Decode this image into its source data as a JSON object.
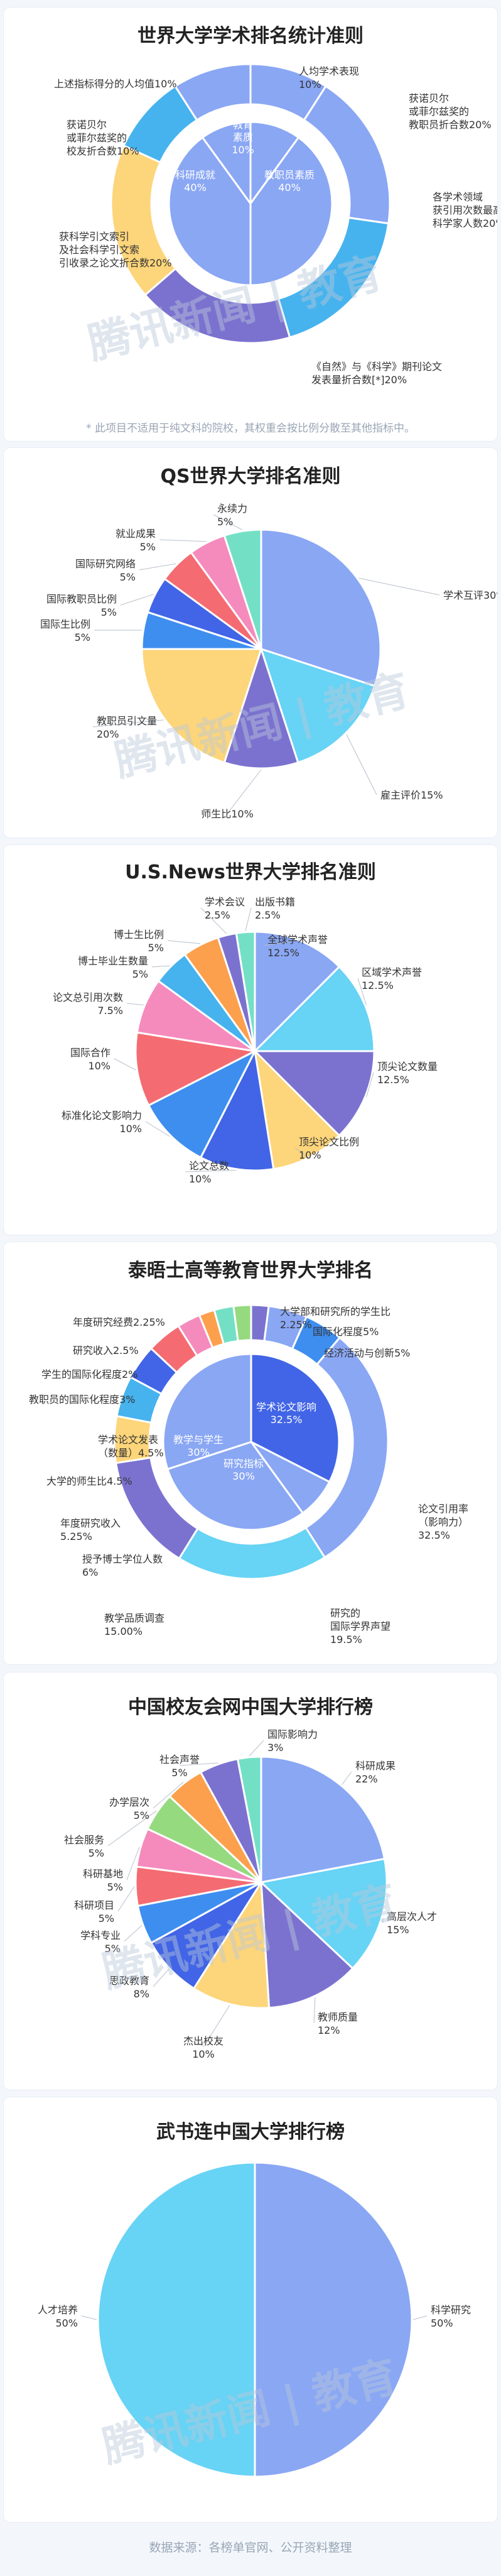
{
  "colors": {
    "blue": "#8aa7f4",
    "sky": "#46b3ee",
    "lightblue": "#67d3f5",
    "yellow": "#fdd57a",
    "purple": "#7b72d0",
    "royal": "#4165e6",
    "red": "#f56b72",
    "pink": "#f58bbd",
    "orange": "#fca04d",
    "teal": "#73e0c6",
    "green": "#96da80",
    "dodger": "#3e8ef0"
  },
  "charts": [
    {
      "id": "arwu",
      "title": "世界大学学术排名统计准则",
      "note": "* 此项目不适用于纯文科的院校，其权重会按比例分散至其他指标中。",
      "chart_data": {
        "type": "pie",
        "title": "世界大学学术排名统计准则",
        "inner": [
          {
            "label": [
              "教育",
              "素质",
              "10%"
            ],
            "value": 10,
            "color": "blue"
          },
          {
            "label": [
              "教职员素质",
              "40%"
            ],
            "value": 40,
            "color": "blue"
          },
          {
            "label": [
              "科研成就",
              "40%"
            ],
            "value": 40,
            "color": "blue"
          },
          {
            "label": [
              ""
            ],
            "value": 10,
            "color": "blue"
          }
        ],
        "outer": [
          {
            "label": [
              "人均学术表现",
              "10%"
            ],
            "value": 10,
            "color": "blue"
          },
          {
            "label": [
              "获诺贝尔",
              "或菲尔兹奖的",
              "教职员折合数20%"
            ],
            "value": 20,
            "color": "blue"
          },
          {
            "label": [
              "各学术领域",
              "获引用次数最高之",
              "科学家人数20%"
            ],
            "value": 20,
            "color": "sky"
          },
          {
            "label": [
              "《自然》与《科学》期刊论文",
              "发表量折合数[*]20%"
            ],
            "value": 20,
            "color": "purple"
          },
          {
            "label": [
              "获科学引文索引",
              "及社会科学引文索",
              "引收录之论文折合数20%"
            ],
            "value": 20,
            "color": "yellow"
          },
          {
            "label": [
              "获诺贝尔",
              "或菲尔兹奖的",
              "校友折合数10%"
            ],
            "value": 10,
            "color": "sky"
          },
          {
            "label": [
              "上述指标得分的人均值10%"
            ],
            "value": 10,
            "color": "blue"
          }
        ]
      }
    },
    {
      "id": "qs",
      "title": "QS世界大学排名准则",
      "chart_data": {
        "type": "pie",
        "title": "QS世界大学排名准则",
        "slices": [
          {
            "label": [
              "学术互评30%"
            ],
            "value": 30,
            "color": "blue"
          },
          {
            "label": [
              "雇主评价15%"
            ],
            "value": 15,
            "color": "lightblue"
          },
          {
            "label": [
              "师生比10%"
            ],
            "value": 10,
            "color": "purple"
          },
          {
            "label": [
              "教职员引文量",
              "20%"
            ],
            "value": 20,
            "color": "yellow"
          },
          {
            "label": [
              "国际生比例",
              "5%"
            ],
            "value": 5,
            "color": "dodger"
          },
          {
            "label": [
              "国际教职员比例",
              "5%"
            ],
            "value": 5,
            "color": "royal"
          },
          {
            "label": [
              "国际研究网络",
              "5%"
            ],
            "value": 5,
            "color": "red"
          },
          {
            "label": [
              "就业成果",
              "5%"
            ],
            "value": 5,
            "color": "pink"
          },
          {
            "label": [
              "永续力",
              "5%"
            ],
            "value": 5,
            "color": "teal"
          }
        ]
      }
    },
    {
      "id": "usnews",
      "title": "U.S.News世界大学排名准则",
      "chart_data": {
        "type": "pie",
        "title": "U.S.News世界大学排名准则",
        "slices": [
          {
            "label": [
              "全球学术声誉",
              "12.5%"
            ],
            "value": 12.5,
            "color": "blue"
          },
          {
            "label": [
              "区域学术声誉",
              "12.5%"
            ],
            "value": 12.5,
            "color": "lightblue"
          },
          {
            "label": [
              "顶尖论文数量",
              "12.5%"
            ],
            "value": 12.5,
            "color": "purple"
          },
          {
            "label": [
              "顶尖论文比例",
              "10%"
            ],
            "value": 10,
            "color": "yellow"
          },
          {
            "label": [
              "论文总数",
              "10%"
            ],
            "value": 10,
            "color": "royal"
          },
          {
            "label": [
              "标准化论文影响力",
              "10%"
            ],
            "value": 10,
            "color": "dodger"
          },
          {
            "label": [
              "国际合作",
              "10%"
            ],
            "value": 10,
            "color": "red"
          },
          {
            "label": [
              "论文总引用次数",
              "7.5%"
            ],
            "value": 7.5,
            "color": "pink"
          },
          {
            "label": [
              "博士毕业生数量",
              "5%"
            ],
            "value": 5,
            "color": "sky"
          },
          {
            "label": [
              "博士生比例",
              "5%"
            ],
            "value": 5,
            "color": "orange"
          },
          {
            "label": [
              "学术会议",
              "2.5%"
            ],
            "value": 2.5,
            "color": "purple"
          },
          {
            "label": [
              "出版书籍",
              "2.5%"
            ],
            "value": 2.5,
            "color": "teal"
          }
        ]
      }
    },
    {
      "id": "the",
      "title": "泰晤士高等教育世界大学排名",
      "chart_data": {
        "type": "pie",
        "title": "泰晤士高等教育世界大学排名",
        "inner": [
          {
            "label": [
              "学术论文影响",
              "32.5%"
            ],
            "value": 32.5,
            "color": "royal"
          },
          {
            "label": [
              ""
            ],
            "value": 7.5,
            "color": "blue"
          },
          {
            "label": [
              "研究指标",
              "30%"
            ],
            "value": 30,
            "color": "blue"
          },
          {
            "label": [
              "教学与学生",
              "30%"
            ],
            "value": 30,
            "color": "blue"
          }
        ],
        "outer": [
          {
            "label": [
              "大学部和研究所的学生比",
              "2.25%"
            ],
            "value": 2.25,
            "color": "purple"
          },
          {
            "label": [
              "国际化程度5%"
            ],
            "value": 5,
            "color": "blue"
          },
          {
            "label": [
              "经济活动与创新5%"
            ],
            "value": 5,
            "color": "dodger"
          },
          {
            "label": [
              "论文引用率",
              "（影响力）",
              "32.5%"
            ],
            "value": 32.5,
            "color": "blue"
          },
          {
            "label": [
              "研究的",
              "国际学界声望",
              "19.5%"
            ],
            "value": 19.5,
            "color": "lightblue"
          },
          {
            "label": [
              "教学品质调查",
              "15.00%"
            ],
            "value": 15,
            "color": "purple"
          },
          {
            "label": [
              "授予博士学位人数",
              "6%"
            ],
            "value": 6,
            "color": "yellow"
          },
          {
            "label": [
              "年度研究收入",
              "5.25%"
            ],
            "value": 5.25,
            "color": "sky"
          },
          {
            "label": [
              "大学的师生比4.5%"
            ],
            "value": 4.5,
            "color": "royal"
          },
          {
            "label": [
              "学术论文发表",
              "（数量）4.5%"
            ],
            "value": 4.5,
            "color": "red"
          },
          {
            "label": [
              "教职员的国际化程度3%"
            ],
            "value": 3,
            "color": "pink"
          },
          {
            "label": [
              "学生的国际化程度2%"
            ],
            "value": 2,
            "color": "orange"
          },
          {
            "label": [
              "研究收入2.5%"
            ],
            "value": 2.5,
            "color": "teal"
          },
          {
            "label": [
              "年度研究经费2.25%"
            ],
            "value": 2.25,
            "color": "green"
          }
        ]
      }
    },
    {
      "id": "cuaa",
      "title": "中国校友会网中国大学排行榜",
      "chart_data": {
        "type": "pie",
        "title": "中国校友会网中国大学排行榜",
        "slices": [
          {
            "label": [
              "科研成果",
              "22%"
            ],
            "value": 22,
            "color": "blue"
          },
          {
            "label": [
              "高层次人才",
              "15%"
            ],
            "value": 15,
            "color": "lightblue"
          },
          {
            "label": [
              "教师质量",
              "12%"
            ],
            "value": 12,
            "color": "purple"
          },
          {
            "label": [
              "杰出校友",
              "10%"
            ],
            "value": 10,
            "color": "yellow"
          },
          {
            "label": [
              "思政教育",
              "8%"
            ],
            "value": 8,
            "color": "royal"
          },
          {
            "label": [
              "学科专业",
              "5%"
            ],
            "value": 5,
            "color": "dodger"
          },
          {
            "label": [
              "科研项目",
              "5%"
            ],
            "value": 5,
            "color": "red"
          },
          {
            "label": [
              "科研基地",
              "5%"
            ],
            "value": 5,
            "color": "pink"
          },
          {
            "label": [
              "社会服务",
              "5%"
            ],
            "value": 5,
            "color": "green"
          },
          {
            "label": [
              "办学层次",
              "5%"
            ],
            "value": 5,
            "color": "orange"
          },
          {
            "label": [
              "社会声誉",
              "5%"
            ],
            "value": 5,
            "color": "purple"
          },
          {
            "label": [
              "国际影响力",
              "3%"
            ],
            "value": 3,
            "color": "teal"
          }
        ]
      }
    },
    {
      "id": "wsl",
      "title": "武书连中国大学排行榜",
      "chart_data": {
        "type": "pie",
        "title": "武书连中国大学排行榜",
        "slices": [
          {
            "label": [
              "科学研究",
              "50%"
            ],
            "value": 50,
            "color": "blue"
          },
          {
            "label": [
              "人才培养",
              "50%"
            ],
            "value": 50,
            "color": "lightblue"
          }
        ]
      }
    }
  ],
  "watermark": "腾讯新闻 | 教育",
  "footer": "数据来源：各榜单官网、公开资料整理"
}
